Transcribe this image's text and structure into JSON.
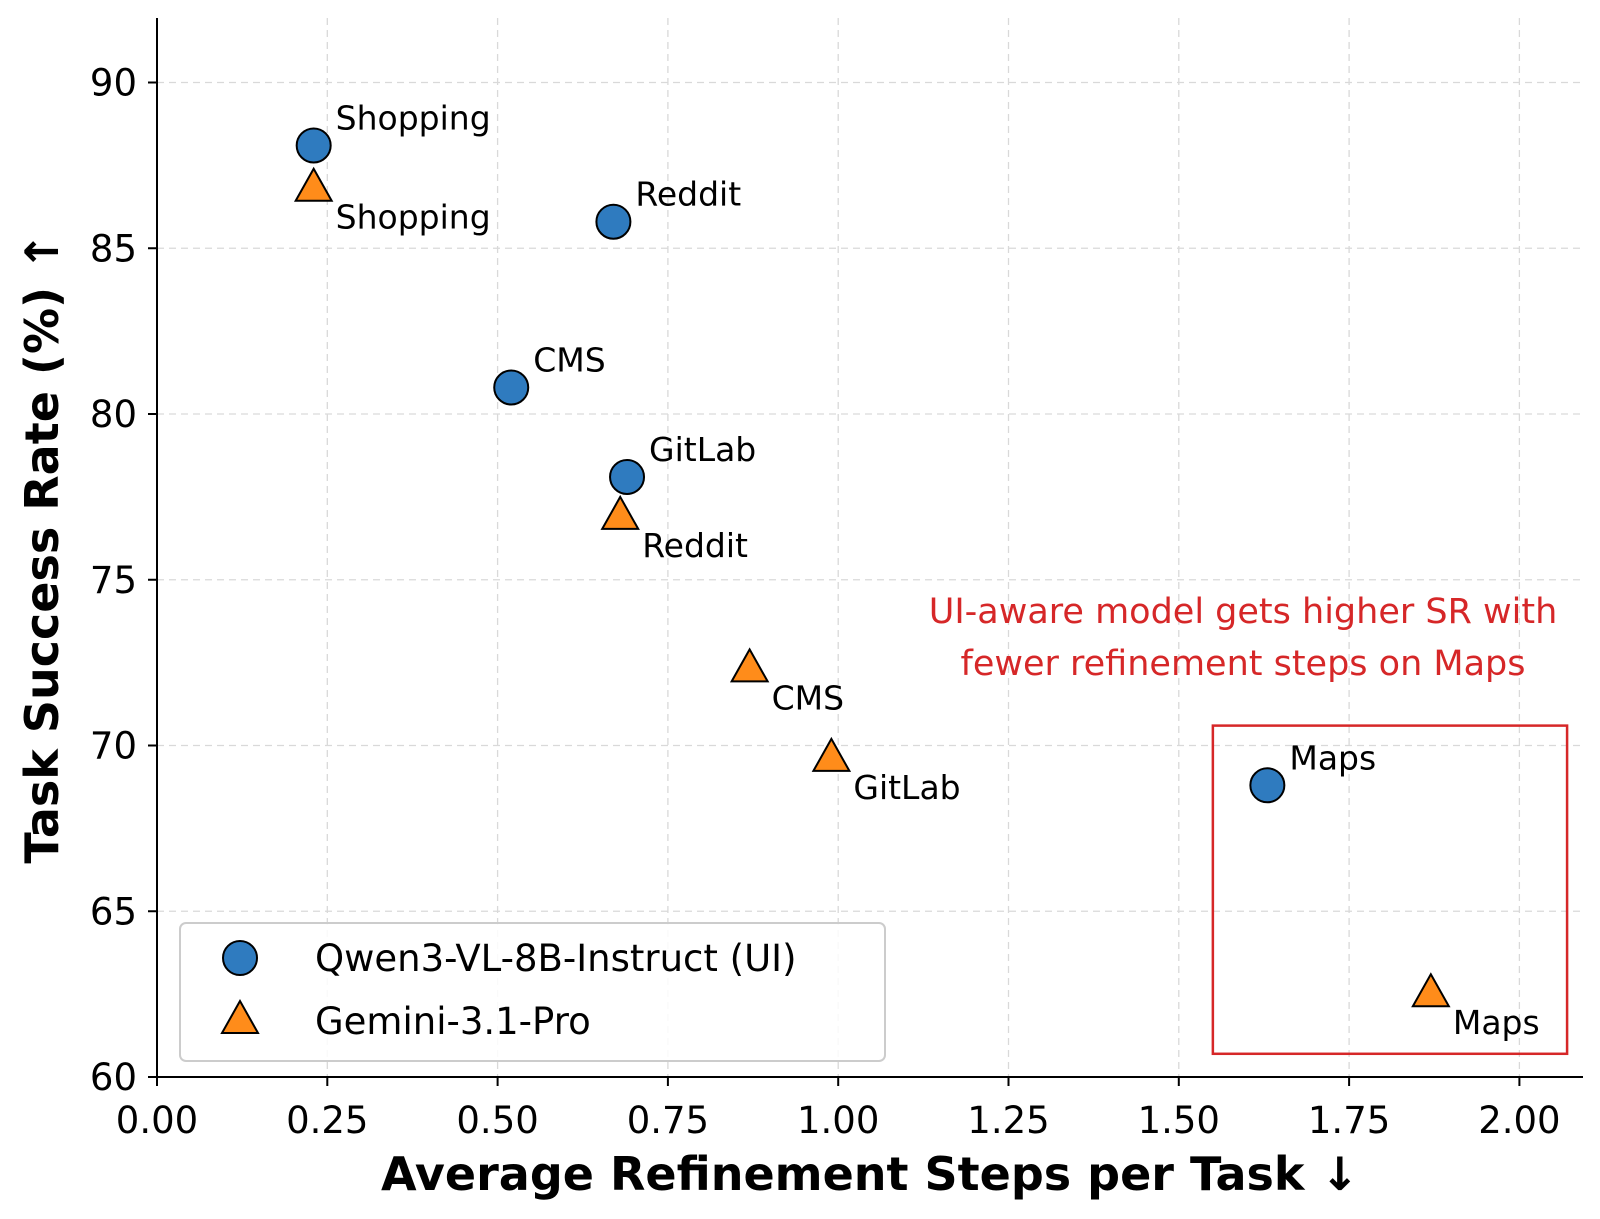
{
  "chart_data": {
    "type": "scatter",
    "xlabel": "Average Refinement Steps per Task ↓",
    "ylabel": "Task Success Rate (%) ↑",
    "xlim": [
      0.0,
      2.1
    ],
    "ylim": [
      60,
      92
    ],
    "xticks": [
      0.0,
      0.25,
      0.5,
      0.75,
      1.0,
      1.25,
      1.5,
      1.75,
      2.0
    ],
    "xtick_labels": [
      "0.00",
      "0.25",
      "0.50",
      "0.75",
      "1.00",
      "1.25",
      "1.50",
      "1.75",
      "2.00"
    ],
    "yticks": [
      60,
      65,
      70,
      75,
      80,
      85,
      90
    ],
    "ytick_labels": [
      "60",
      "65",
      "70",
      "75",
      "80",
      "85",
      "90"
    ],
    "grid": true,
    "legend_position": "lower-left",
    "series": [
      {
        "name": "Qwen3-VL-8B-Instruct (UI)",
        "marker": "circle",
        "color": "#2f7bbf",
        "points": [
          {
            "label": "Shopping",
            "x": 0.23,
            "y": 88.1
          },
          {
            "label": "Reddit",
            "x": 0.67,
            "y": 85.8
          },
          {
            "label": "CMS",
            "x": 0.52,
            "y": 80.8
          },
          {
            "label": "GitLab",
            "x": 0.69,
            "y": 78.1
          },
          {
            "label": "Maps",
            "x": 1.63,
            "y": 68.8
          }
        ]
      },
      {
        "name": "Gemini-3.1-Pro",
        "marker": "triangle",
        "color": "#ff8c1a",
        "points": [
          {
            "label": "Shopping",
            "x": 0.23,
            "y": 86.8
          },
          {
            "label": "Reddit",
            "x": 0.68,
            "y": 76.9
          },
          {
            "label": "CMS",
            "x": 0.87,
            "y": 72.3
          },
          {
            "label": "GitLab",
            "x": 0.99,
            "y": 69.6
          },
          {
            "label": "Maps",
            "x": 1.87,
            "y": 62.5
          }
        ]
      }
    ],
    "annotation": {
      "lines": [
        "UI-aware model gets higher SR with",
        "fewer refinement steps on Maps"
      ],
      "color": "#d62728",
      "box_x": [
        1.55,
        2.07
      ],
      "box_y": [
        60.7,
        70.6
      ]
    }
  }
}
